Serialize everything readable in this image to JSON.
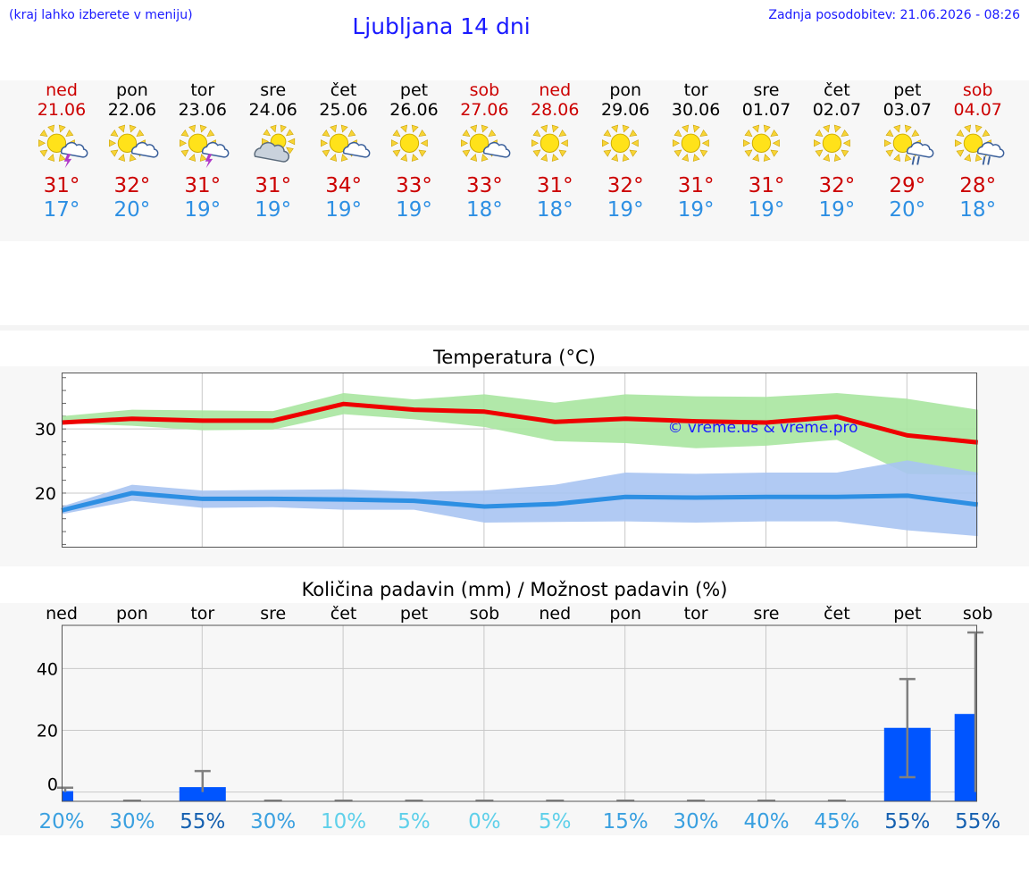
{
  "header": {
    "hint": "(kraj lahko izberete v meniju)",
    "title": "Ljubljana 14 dni",
    "updated": "Zadnja posodobitev: 21.06.2026 - 08:26"
  },
  "colors": {
    "link_blue": "#1a1aff",
    "weekend_red": "#cc0000",
    "max_red": "#ee0000",
    "min_blue": "#2d8fe3",
    "max_band": "#a9e5a0",
    "min_band": "#a9c4f2",
    "bar_blue": "#0055ff"
  },
  "days": [
    {
      "name": "ned",
      "date": "21.06",
      "icon": "sun-cloud-storm-icon",
      "tmax": "31°",
      "tmin": "17°",
      "weekend": true
    },
    {
      "name": "pon",
      "date": "22.06",
      "icon": "sun-cloud-icon",
      "tmax": "32°",
      "tmin": "20°",
      "weekend": false
    },
    {
      "name": "tor",
      "date": "23.06",
      "icon": "sun-cloud-storm-icon",
      "tmax": "31°",
      "tmin": "19°",
      "weekend": false
    },
    {
      "name": "sre",
      "date": "24.06",
      "icon": "cloud-sun-icon",
      "tmax": "31°",
      "tmin": "19°",
      "weekend": false
    },
    {
      "name": "čet",
      "date": "25.06",
      "icon": "sun-cloud-icon",
      "tmax": "34°",
      "tmin": "19°",
      "weekend": false
    },
    {
      "name": "pet",
      "date": "26.06",
      "icon": "sun-icon",
      "tmax": "33°",
      "tmin": "19°",
      "weekend": false
    },
    {
      "name": "sob",
      "date": "27.06",
      "icon": "sun-cloud-icon",
      "tmax": "33°",
      "tmin": "18°",
      "weekend": true
    },
    {
      "name": "ned",
      "date": "28.06",
      "icon": "sun-icon",
      "tmax": "31°",
      "tmin": "18°",
      "weekend": true
    },
    {
      "name": "pon",
      "date": "29.06",
      "icon": "sun-icon",
      "tmax": "32°",
      "tmin": "19°",
      "weekend": false
    },
    {
      "name": "tor",
      "date": "30.06",
      "icon": "sun-icon",
      "tmax": "31°",
      "tmin": "19°",
      "weekend": false
    },
    {
      "name": "sre",
      "date": "01.07",
      "icon": "sun-icon",
      "tmax": "31°",
      "tmin": "19°",
      "weekend": false
    },
    {
      "name": "čet",
      "date": "02.07",
      "icon": "sun-icon",
      "tmax": "32°",
      "tmin": "19°",
      "weekend": false
    },
    {
      "name": "pet",
      "date": "03.07",
      "icon": "sun-cloud-rain-icon",
      "tmax": "29°",
      "tmin": "20°",
      "weekend": false
    },
    {
      "name": "sob",
      "date": "04.07",
      "icon": "sun-cloud-rain-icon",
      "tmax": "28°",
      "tmin": "18°",
      "weekend": true
    }
  ],
  "chart_data": [
    {
      "type": "line",
      "title": "Temperatura (°C)",
      "watermark": "© vreme.us & vreme.pro",
      "ylim": [
        11.5,
        38.8
      ],
      "yticks": [
        20,
        30
      ],
      "grid": true,
      "series": [
        {
          "values": [
            31.0,
            31.6,
            31.3,
            31.3,
            33.9,
            33.0,
            32.7,
            31.1,
            31.6,
            31.2,
            31.0,
            31.9,
            29.0,
            27.9
          ],
          "band_low": [
            30.9,
            30.5,
            29.8,
            29.9,
            32.3,
            31.5,
            30.3,
            28.1,
            27.8,
            27.0,
            27.4,
            28.3,
            23.0,
            22.8
          ],
          "band_high": [
            32.0,
            33.0,
            32.9,
            32.8,
            35.6,
            34.6,
            35.4,
            34.1,
            35.4,
            35.1,
            35.0,
            35.6,
            34.7,
            33.0
          ]
        },
        {
          "values": [
            17.3,
            20.0,
            19.1,
            19.1,
            19.0,
            18.8,
            17.9,
            18.3,
            19.4,
            19.3,
            19.4,
            19.4,
            19.6,
            18.2
          ],
          "band_low": [
            16.7,
            18.8,
            17.7,
            17.8,
            17.4,
            17.4,
            15.4,
            15.5,
            15.6,
            15.4,
            15.6,
            15.6,
            14.2,
            13.3
          ],
          "band_high": [
            17.9,
            21.3,
            20.4,
            20.5,
            20.6,
            20.2,
            20.4,
            21.3,
            23.2,
            23.0,
            23.2,
            23.2,
            25.1,
            23.2
          ]
        }
      ]
    },
    {
      "type": "bar",
      "title": "Količina padavin (mm) / Možnost padavin (%)",
      "categories": [
        "ned",
        "pon",
        "tor",
        "sre",
        "čet",
        "pet",
        "sob",
        "ned",
        "pon",
        "tor",
        "sre",
        "čet",
        "pet",
        "sob"
      ],
      "values": [
        0.3,
        0,
        1.6,
        0,
        0,
        0,
        0,
        0,
        0,
        0,
        0,
        0,
        20.8,
        25.3
      ],
      "error_low": [
        0,
        0,
        0,
        0,
        0,
        0,
        0,
        0,
        0,
        0,
        0,
        0,
        4.8,
        0
      ],
      "error_high": [
        1.4,
        0,
        6.8,
        0,
        0,
        0,
        0,
        0,
        0,
        0,
        0,
        0,
        36.6,
        51.7
      ],
      "ylim": [
        -3,
        54
      ],
      "yticks": [
        0,
        20,
        40
      ],
      "grid": true,
      "probability_labels": [
        "20%",
        "30%",
        "55%",
        "30%",
        "10%",
        "5%",
        "0%",
        "5%",
        "15%",
        "30%",
        "40%",
        "45%",
        "55%",
        "55%"
      ],
      "probability_colors": [
        "#3aa0e0",
        "#3aa0e0",
        "#1560b0",
        "#3aa0e0",
        "#5fd0ea",
        "#5fd0ea",
        "#5fd0ea",
        "#5fd0ea",
        "#3aa0e0",
        "#3aa0e0",
        "#3aa0e0",
        "#3aa0e0",
        "#1560b0",
        "#1560b0"
      ]
    }
  ]
}
